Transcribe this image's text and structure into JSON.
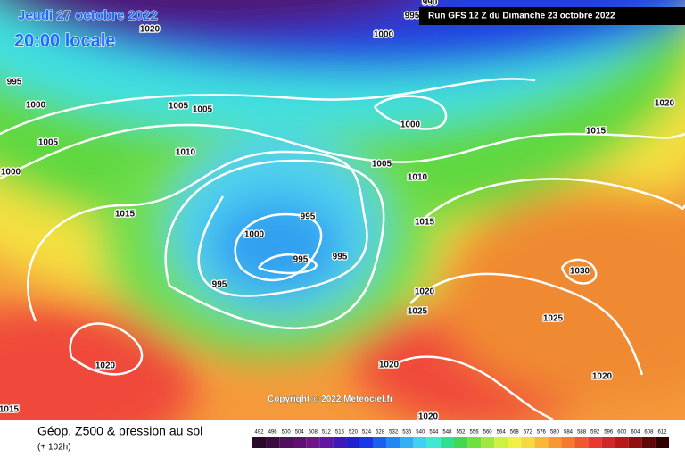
{
  "header": {
    "date": "Jeudi 27 octobre 2022",
    "time": "20:00 locale",
    "run": "Run GFS 12 Z du Dimanche 23 octobre 2022"
  },
  "copyright": "Copyright © 2022 Meteociel.fr",
  "footer": {
    "title": "Géop. Z500 & pression au sol",
    "lead": "(+ 102h)"
  },
  "legend": {
    "levels": [
      492,
      496,
      500,
      504,
      508,
      512,
      516,
      520,
      524,
      528,
      532,
      536,
      540,
      544,
      548,
      552,
      556,
      560,
      564,
      568,
      572,
      576,
      580,
      584,
      588,
      592,
      596,
      600,
      604,
      608,
      612
    ],
    "colors": [
      "#2a0a2a",
      "#3c0c40",
      "#501060",
      "#601070",
      "#701488",
      "#6018a0",
      "#4018b8",
      "#2020d0",
      "#1838e8",
      "#1860f0",
      "#2088f0",
      "#30b0f0",
      "#40d0f0",
      "#40e8d0",
      "#30e090",
      "#40d850",
      "#70e040",
      "#a0e840",
      "#d0f040",
      "#f0f040",
      "#f8d840",
      "#f8b838",
      "#f89830",
      "#f87830",
      "#f05830",
      "#e83830",
      "#d02828",
      "#b81818",
      "#901010",
      "#600808",
      "#300000"
    ]
  },
  "isobar_labels": [
    "1020",
    "1000",
    "995",
    "1000",
    "1005",
    "1005",
    "1005",
    "1000",
    "1010",
    "1000",
    "1015",
    "1005",
    "1010",
    "1015",
    "995",
    "1000",
    "1015",
    "995",
    "995",
    "995",
    "1030",
    "1020",
    "1025",
    "1025",
    "1020",
    "1020",
    "1020",
    "1020",
    "1015",
    "1020",
    "990",
    "995"
  ]
}
